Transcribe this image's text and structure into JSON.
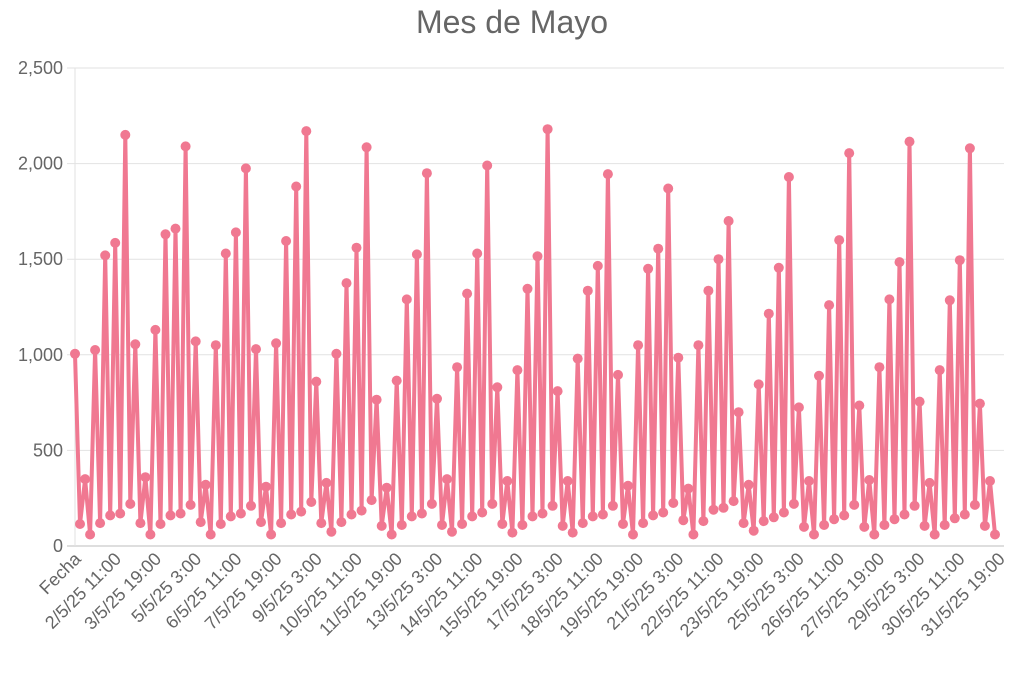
{
  "chart_data": {
    "type": "line",
    "title": "Mes de Mayo",
    "xlabel": "",
    "ylabel": "",
    "ylim": [
      0,
      2500
    ],
    "y_ticks": [
      "0",
      "500",
      "1,000",
      "1,500",
      "2,000",
      "2,500"
    ],
    "x_tick_labels": [
      "Fecha",
      "2/5/25 11:00",
      "3/5/25 19:00",
      "5/5/25 3:00",
      "6/5/25 11:00",
      "7/5/25 19:00",
      "9/5/25 3:00",
      "10/5/25 11:00",
      "11/5/25 19:00",
      "13/5/25 3:00",
      "14/5/25 11:00",
      "15/5/25 19:00",
      "17/5/25 3:00",
      "18/5/25 11:00",
      "19/5/25 19:00",
      "21/5/25 3:00",
      "22/5/25 11:00",
      "23/5/25 19:00",
      "25/5/25 3:00",
      "26/5/25 11:00",
      "27/5/25 19:00",
      "29/5/25 3:00",
      "30/5/25 11:00",
      "31/5/25 19:00"
    ],
    "grid": true,
    "series": [
      {
        "name": "",
        "color": "#f07891",
        "values": [
          1005,
          115,
          350,
          60,
          1025,
          120,
          1520,
          160,
          1585,
          170,
          2150,
          220,
          1055,
          120,
          360,
          60,
          1130,
          115,
          1630,
          160,
          1660,
          170,
          2090,
          215,
          1070,
          125,
          320,
          60,
          1050,
          115,
          1530,
          155,
          1640,
          170,
          1975,
          210,
          1030,
          125,
          310,
          60,
          1060,
          120,
          1595,
          165,
          1880,
          180,
          2170,
          230,
          860,
          120,
          330,
          75,
          1005,
          125,
          1375,
          165,
          1560,
          185,
          2085,
          240,
          765,
          105,
          305,
          60,
          865,
          110,
          1290,
          155,
          1525,
          170,
          1950,
          220,
          770,
          110,
          350,
          75,
          935,
          115,
          1320,
          155,
          1530,
          175,
          1990,
          220,
          830,
          115,
          340,
          70,
          920,
          110,
          1345,
          155,
          1515,
          170,
          2180,
          210,
          810,
          105,
          340,
          70,
          980,
          120,
          1335,
          155,
          1465,
          165,
          1945,
          210,
          895,
          115,
          315,
          60,
          1050,
          120,
          1450,
          160,
          1555,
          175,
          1870,
          225,
          985,
          135,
          300,
          60,
          1050,
          130,
          1335,
          190,
          1500,
          200,
          1700,
          235,
          700,
          120,
          320,
          80,
          845,
          130,
          1215,
          150,
          1455,
          175,
          1930,
          220,
          725,
          100,
          340,
          60,
          890,
          110,
          1260,
          140,
          1600,
          160,
          2055,
          215,
          735,
          100,
          345,
          60,
          935,
          110,
          1290,
          140,
          1485,
          165,
          2115,
          210,
          755,
          105,
          330,
          60,
          920,
          110,
          1285,
          145,
          1495,
          165,
          2080,
          215,
          745,
          105,
          340,
          60
        ]
      }
    ]
  }
}
